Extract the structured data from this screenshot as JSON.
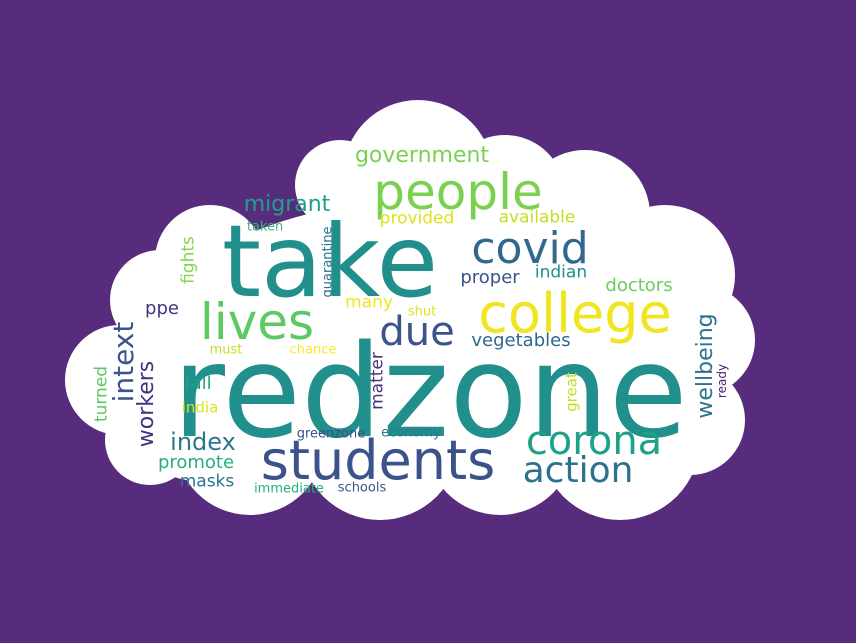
{
  "colors": {
    "background": "#582c7d",
    "cloud": "#ffffff"
  },
  "words": [
    {
      "text": "redzone",
      "color": "#21908d"
    },
    {
      "text": "take",
      "color": "#21908d"
    },
    {
      "text": "students",
      "color": "#3b528b"
    },
    {
      "text": "college",
      "color": "#f0e51f"
    },
    {
      "text": "people",
      "color": "#7ad151"
    },
    {
      "text": "lives",
      "color": "#5ec962"
    },
    {
      "text": "covid",
      "color": "#31688e"
    },
    {
      "text": "corona",
      "color": "#1fa187"
    },
    {
      "text": "action",
      "color": "#2c728e"
    },
    {
      "text": "due",
      "color": "#3b528b"
    },
    {
      "text": "government",
      "color": "#7ad151"
    },
    {
      "text": "migrant",
      "color": "#1fa187"
    },
    {
      "text": "provided",
      "color": "#dde318"
    },
    {
      "text": "available",
      "color": "#c2df23"
    },
    {
      "text": "taken",
      "color": "#35b779"
    },
    {
      "text": "proper",
      "color": "#3b528b"
    },
    {
      "text": "indian",
      "color": "#21908d"
    },
    {
      "text": "doctors",
      "color": "#6ccd5a"
    },
    {
      "text": "ppe",
      "color": "#46327e"
    },
    {
      "text": "many",
      "color": "#f0e51f"
    },
    {
      "text": "shut",
      "color": "#e1e31a"
    },
    {
      "text": "vegetables",
      "color": "#31688e"
    },
    {
      "text": "must",
      "color": "#c2df23"
    },
    {
      "text": "chance",
      "color": "#fde725"
    },
    {
      "text": "fall",
      "color": "#1fa187"
    },
    {
      "text": "india",
      "color": "#dde318"
    },
    {
      "text": "index",
      "color": "#2a788e"
    },
    {
      "text": "promote",
      "color": "#26ad81"
    },
    {
      "text": "masks",
      "color": "#2c728e"
    },
    {
      "text": "greenzone",
      "color": "#3e4a89"
    },
    {
      "text": "economy",
      "color": "#2a788e"
    },
    {
      "text": "immediate",
      "color": "#26ad81"
    },
    {
      "text": "schools",
      "color": "#3b528b"
    },
    {
      "text": "intext",
      "color": "#3b528b"
    },
    {
      "text": "workers",
      "color": "#46327e"
    },
    {
      "text": "turned",
      "color": "#5ec962"
    },
    {
      "text": "fights",
      "color": "#86d549"
    },
    {
      "text": "quarantine",
      "color": "#2c728e"
    },
    {
      "text": "matter",
      "color": "#46327e"
    },
    {
      "text": "great",
      "color": "#c2df23"
    },
    {
      "text": "wellbeing",
      "color": "#2c728e"
    },
    {
      "text": "ready",
      "color": "#482173"
    }
  ]
}
